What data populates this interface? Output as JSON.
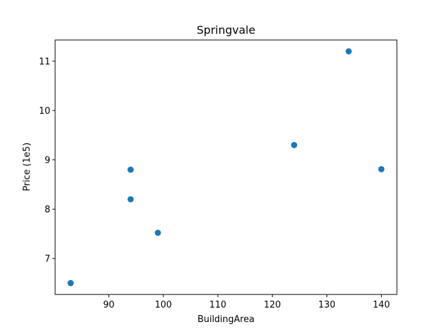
{
  "chart_data": {
    "type": "scatter",
    "title": "Springvale",
    "xlabel": "BuildingArea",
    "ylabel": "Price (1e5)",
    "xlim": [
      80.15,
      142.85
    ],
    "ylim": [
      6.27,
      11.43
    ],
    "xticks": [
      90,
      100,
      110,
      120,
      130,
      140
    ],
    "yticks": [
      7,
      8,
      9,
      10,
      11
    ],
    "grid": false,
    "series": [
      {
        "color": "#1f77b4",
        "points": [
          {
            "x": 83,
            "y": 6.5
          },
          {
            "x": 94,
            "y": 8.8
          },
          {
            "x": 94,
            "y": 8.2
          },
          {
            "x": 99,
            "y": 7.52
          },
          {
            "x": 124,
            "y": 9.3
          },
          {
            "x": 134,
            "y": 11.2
          },
          {
            "x": 140,
            "y": 8.81
          }
        ]
      }
    ]
  }
}
